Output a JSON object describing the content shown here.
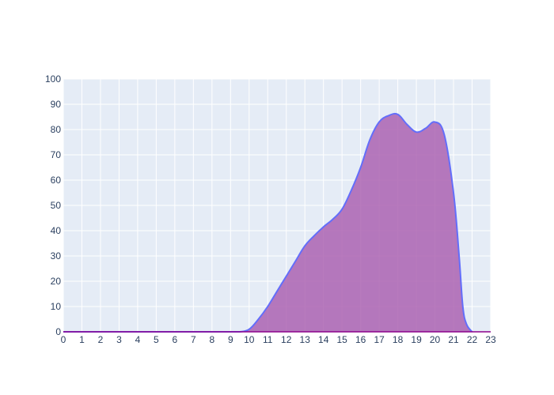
{
  "chart_data": {
    "type": "area",
    "title": "",
    "xlabel": "",
    "ylabel": "",
    "xlim": [
      0,
      23
    ],
    "ylim": [
      0,
      100
    ],
    "x_ticks": [
      0,
      1,
      2,
      3,
      4,
      5,
      6,
      7,
      8,
      9,
      10,
      11,
      12,
      13,
      14,
      15,
      16,
      17,
      18,
      19,
      20,
      21,
      22,
      23
    ],
    "y_ticks": [
      0,
      10,
      20,
      30,
      40,
      50,
      60,
      70,
      80,
      90,
      100
    ],
    "grid": true,
    "legend": "none",
    "colors": {
      "plot_background": "#e5ecf6",
      "grid": "#ffffff",
      "line": "#636efa",
      "fill": "#ab63b2",
      "baseline": "#8b008b",
      "tick_text": "#2a3f5f"
    },
    "series": [
      {
        "x": [
          0,
          1,
          2,
          3,
          4,
          5,
          6,
          7,
          8,
          9,
          9.5,
          10,
          10.5,
          11,
          11.5,
          12,
          12.5,
          13,
          13.5,
          14,
          14.5,
          15,
          15.5,
          16,
          16.5,
          17,
          17.5,
          18,
          18.5,
          19,
          19.5,
          20,
          20.5,
          21,
          21.3,
          21.5,
          21.7,
          22
        ],
        "y": [
          0,
          0,
          0,
          0,
          0,
          0,
          0,
          0,
          0,
          0,
          0,
          1,
          5,
          10,
          16,
          22,
          28,
          34,
          38,
          41.5,
          44.5,
          48.5,
          56,
          65,
          76,
          83,
          85.5,
          86,
          82,
          79,
          80.5,
          83,
          78,
          55,
          30,
          10,
          3,
          0
        ]
      }
    ]
  }
}
